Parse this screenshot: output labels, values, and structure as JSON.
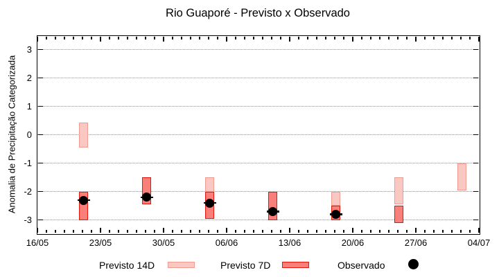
{
  "title": "Rio Guaporé - Previsto x Observado",
  "chart_data": {
    "type": "floating-bar-range",
    "title": "Rio Guaporé - Previsto x Observado",
    "xlabel": "",
    "ylabel": "Anomalia de Precipitação Categorizada",
    "ylim": [
      -3.47,
      3.48
    ],
    "grid": "horizontal dotted gridlines at integer y values",
    "legend_position": "below chart",
    "y_ticks": [
      3,
      2,
      1,
      0,
      -1,
      -2,
      -3
    ],
    "x_ticks": [
      {
        "label": "16/05",
        "day": 0
      },
      {
        "label": "23/05",
        "day": 7
      },
      {
        "label": "30/05",
        "day": 14
      },
      {
        "label": "06/06",
        "day": 21
      },
      {
        "label": "13/06",
        "day": 28
      },
      {
        "label": "20/06",
        "day": 35
      },
      {
        "label": "27/06",
        "day": 42
      },
      {
        "label": "04/07",
        "day": 49
      }
    ],
    "x_minor_tick_interval_days": 1,
    "series": [
      {
        "name": "Previsto 14D",
        "kind": "range-bar"
      },
      {
        "name": "Previsto 7D",
        "kind": "range-bar"
      },
      {
        "name": "Observado",
        "kind": "point"
      }
    ],
    "groups": [
      {
        "date": "21/05",
        "day": 5,
        "previsto_14d": [
          -0.45,
          0.43
        ],
        "previsto_7d": [
          -3.0,
          -2.0
        ],
        "observado": -2.3
      },
      {
        "date": "28/05",
        "day": 12,
        "previsto_14d": null,
        "previsto_7d": [
          -2.45,
          -1.5
        ],
        "observado": -2.2
      },
      {
        "date": "04/06",
        "day": 19,
        "previsto_14d": [
          -2.0,
          -1.5
        ],
        "previsto_7d": [
          -2.95,
          -2.0
        ],
        "observado": -2.4
      },
      {
        "date": "11/06",
        "day": 26,
        "previsto_14d": null,
        "previsto_7d": [
          -3.0,
          -2.0
        ],
        "observado": -2.7
      },
      {
        "date": "18/06",
        "day": 33,
        "previsto_14d": [
          -2.5,
          -2.0
        ],
        "previsto_7d": [
          -3.0,
          -2.5
        ],
        "observado": -2.8
      },
      {
        "date": "25/06",
        "day": 40,
        "previsto_14d": [
          -2.45,
          -1.5
        ],
        "previsto_7d": [
          -3.1,
          -2.5
        ],
        "observado": null
      },
      {
        "date": "02/07",
        "day": 47,
        "previsto_14d": [
          -1.95,
          -1.0
        ],
        "previsto_7d": null,
        "observado": null
      }
    ]
  },
  "legend": {
    "items": [
      {
        "label": "Previsto 14D",
        "series": "previsto_14d"
      },
      {
        "label": "Previsto 7D",
        "series": "previsto_7d"
      },
      {
        "label": "Observado",
        "series": "observado"
      }
    ]
  },
  "colors": {
    "previsto_14d_fill": "#f9c8c2",
    "previsto_14d_border": "#f09a90",
    "previsto_7d_fill": "#f9807a",
    "previsto_7d_border": "#e8140a",
    "observado": "#000000",
    "grid": "#909090",
    "axis": "#000000",
    "background": "#ffffff"
  }
}
